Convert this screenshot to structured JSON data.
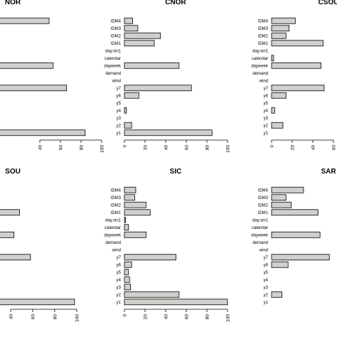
{
  "figure": {
    "bar_fill": "#cfd0cc",
    "bar_stroke": "#000000",
    "axis_color": "#000000"
  },
  "chart_data": [
    {
      "type": "bar",
      "orientation": "horizontal",
      "title": "NOR",
      "categories": [
        "y1",
        "y2",
        "y3",
        "y4",
        "y5",
        "y6",
        "y7",
        "wind",
        "demand",
        "dayweek",
        "calendar",
        "day.sin1",
        "IDM1",
        "IDM2",
        "IDM3",
        "IDM4"
      ],
      "values": [
        84,
        null,
        null,
        null,
        null,
        null,
        66,
        null,
        null,
        53,
        null,
        null,
        null,
        null,
        null,
        49
      ],
      "xlim": [
        0,
        100
      ],
      "xticks": [
        40,
        60,
        80,
        100
      ],
      "category_labels_visible": false
    },
    {
      "type": "bar",
      "orientation": "horizontal",
      "title": "CNOR",
      "categories": [
        "y1",
        "y2",
        "y3",
        "y4",
        "y5",
        "y6",
        "y7",
        "wind",
        "demand",
        "dayweek",
        "calendar",
        "day.sin1",
        "IDM1",
        "IDM2",
        "IDM3",
        "IDM4"
      ],
      "values": [
        85,
        7,
        0,
        2,
        0,
        14,
        65,
        0,
        0,
        53,
        0,
        0,
        29,
        35,
        13,
        8
      ],
      "xlim": [
        0,
        100
      ],
      "xticks": [
        0,
        20,
        40,
        60,
        80,
        100
      ],
      "category_labels_visible": true
    },
    {
      "type": "bar",
      "orientation": "horizontal",
      "title": "CSOU",
      "categories": [
        "y1",
        "y2",
        "y3",
        "y4",
        "y5",
        "y6",
        "y7",
        "wind",
        "demand",
        "dayweek",
        "calendar",
        "day.sin1",
        "IDM1",
        "IDM2",
        "IDM3",
        "IDM4"
      ],
      "values": [
        null,
        11,
        0,
        3,
        0,
        14,
        51,
        0,
        0,
        48,
        2,
        0,
        50,
        14,
        17,
        23
      ],
      "xlim": [
        0,
        60
      ],
      "xticks": [
        0,
        20,
        40,
        60
      ],
      "category_labels_visible": true
    },
    {
      "type": "bar",
      "orientation": "horizontal",
      "title": "SOU",
      "categories": [
        "y1",
        "y2",
        "y3",
        "y4",
        "y5",
        "y6",
        "y7",
        "wind",
        "demand",
        "dayweek",
        "calendar",
        "day.sin1",
        "IDM1",
        "IDM2",
        "IDM3",
        "IDM4"
      ],
      "values": [
        98,
        null,
        null,
        null,
        null,
        null,
        58,
        null,
        null,
        43,
        null,
        null,
        48,
        null,
        null,
        null
      ],
      "xlim": [
        0,
        100
      ],
      "xticks": [
        40,
        60,
        80,
        100
      ],
      "category_labels_visible": false
    },
    {
      "type": "bar",
      "orientation": "horizontal",
      "title": "SIC",
      "categories": [
        "y1",
        "y2",
        "y3",
        "y4",
        "y5",
        "y6",
        "y7",
        "wind",
        "demand",
        "dayweek",
        "calendar",
        "day.sin1",
        "IDM1",
        "IDM2",
        "IDM3",
        "IDM4"
      ],
      "values": [
        100,
        53,
        6,
        5,
        4,
        7,
        50,
        0,
        0,
        21,
        4,
        1,
        25,
        21,
        10,
        11
      ],
      "xlim": [
        0,
        100
      ],
      "xticks": [
        0,
        20,
        40,
        60,
        80,
        100
      ],
      "category_labels_visible": true
    },
    {
      "type": "bar",
      "orientation": "horizontal",
      "title": "SAR",
      "categories": [
        "y1",
        "y2",
        "y3",
        "y4",
        "y5",
        "y6",
        "y7",
        "wind",
        "demand",
        "dayweek",
        "calendar",
        "day.sin1",
        "IDM1",
        "IDM2",
        "IDM3",
        "IDM4"
      ],
      "values": [
        null,
        10,
        0,
        0,
        0,
        16,
        56,
        0,
        0,
        47,
        0,
        0,
        45,
        19,
        14,
        31
      ],
      "xlim": [
        0,
        60
      ],
      "xticks": [],
      "category_labels_visible": true
    }
  ]
}
